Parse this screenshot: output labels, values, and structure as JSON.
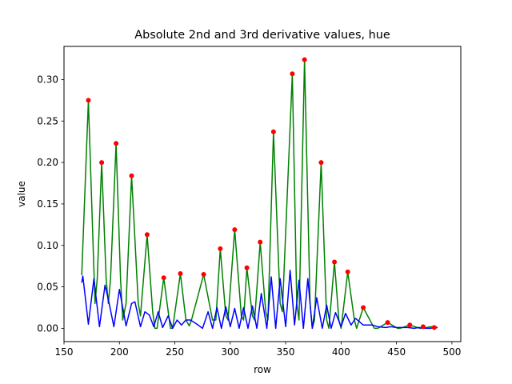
{
  "chart_data": {
    "type": "line",
    "title": "Absolute 2nd and 3rd derivative values, hue",
    "xlabel": "row",
    "ylabel": "value",
    "xlim": [
      150,
      508
    ],
    "ylim": [
      -0.016,
      0.34
    ],
    "xticks": [
      150,
      200,
      250,
      300,
      350,
      400,
      450,
      500
    ],
    "yticks": [
      0.0,
      0.05,
      0.1,
      0.15,
      0.2,
      0.25,
      0.3
    ],
    "ytick_labels": [
      "0.00",
      "0.05",
      "0.10",
      "0.15",
      "0.20",
      "0.25",
      "0.30"
    ],
    "grid": false,
    "series": [
      {
        "color": "#008000",
        "style": "line",
        "x": [
          166,
          172,
          176,
          178,
          180,
          184,
          188,
          190,
          192,
          197,
          201,
          203,
          206,
          211,
          217,
          219,
          225,
          230,
          232,
          234,
          240,
          246,
          248,
          255,
          260,
          263,
          265,
          276,
          284,
          287,
          291,
          296,
          298,
          304,
          310,
          312,
          315,
          320,
          322,
          327,
          332,
          334,
          339,
          345,
          347,
          356,
          360,
          362,
          367,
          372,
          374,
          376,
          382,
          387,
          389,
          394,
          398,
          400,
          406,
          412,
          414,
          420,
          430,
          433,
          442,
          451,
          453,
          462,
          471,
          473,
          481,
          487
        ],
        "y": [
          0.064,
          0.275,
          0.11,
          0.03,
          0.06,
          0.2,
          0.06,
          0.03,
          0.06,
          0.223,
          0.06,
          0.01,
          0.03,
          0.184,
          0.03,
          0.015,
          0.113,
          0.02,
          0.0,
          0.0,
          0.061,
          0.0,
          0.0,
          0.066,
          0.01,
          0.003,
          0.01,
          0.065,
          0.01,
          0.01,
          0.096,
          0.015,
          0.01,
          0.119,
          0.015,
          0.01,
          0.073,
          0.015,
          0.01,
          0.104,
          0.02,
          0.01,
          0.237,
          0.03,
          0.02,
          0.307,
          0.03,
          0.01,
          0.324,
          0.03,
          0.0,
          0.01,
          0.2,
          0.01,
          0.0,
          0.08,
          0.01,
          0.0,
          0.068,
          0.01,
          0.0,
          0.025,
          0.0,
          0.0,
          0.007,
          0.0,
          0.0,
          0.004,
          0.0,
          0.0,
          0.002,
          0.001
        ]
      },
      {
        "color": "#0000ff",
        "style": "line",
        "x": [
          166,
          167,
          172,
          177,
          182,
          187,
          190,
          195,
          200,
          206,
          211,
          214,
          219,
          223,
          227,
          231,
          235,
          239,
          244,
          248,
          252,
          256,
          260,
          264,
          270,
          275,
          280,
          284,
          288,
          292,
          296,
          300,
          304,
          308,
          312,
          316,
          320,
          324,
          328,
          333,
          337,
          341,
          345,
          350,
          354,
          358,
          362,
          366,
          370,
          374,
          378,
          383,
          387,
          391,
          395,
          400,
          404,
          409,
          413,
          420,
          428,
          433,
          440,
          445,
          450,
          456,
          460,
          466,
          470,
          476,
          480,
          487
        ],
        "y": [
          0.055,
          0.063,
          0.005,
          0.06,
          0.002,
          0.052,
          0.035,
          0.002,
          0.047,
          0.003,
          0.03,
          0.032,
          0.002,
          0.02,
          0.016,
          0.002,
          0.02,
          0.001,
          0.015,
          0.0,
          0.01,
          0.004,
          0.01,
          0.01,
          0.005,
          0.0,
          0.02,
          0.0,
          0.025,
          0.0,
          0.026,
          0.002,
          0.024,
          0.0,
          0.025,
          0.0,
          0.027,
          0.0,
          0.042,
          0.0,
          0.062,
          0.0,
          0.06,
          0.002,
          0.07,
          0.004,
          0.058,
          0.0,
          0.06,
          0.0,
          0.037,
          0.0,
          0.028,
          0.0,
          0.019,
          0.002,
          0.018,
          0.004,
          0.012,
          0.004,
          0.004,
          0.002,
          0.001,
          0.002,
          0.001,
          0.001,
          0.001,
          0.0,
          0.001,
          0.0,
          0.0,
          0.001
        ]
      },
      {
        "color": "#ff0000",
        "style": "points",
        "x": [
          172,
          184,
          197,
          211,
          225,
          240,
          255,
          276,
          291,
          304,
          315,
          327,
          339,
          356,
          367,
          382,
          394,
          406,
          420,
          442,
          462,
          474,
          484
        ],
        "y": [
          0.275,
          0.2,
          0.223,
          0.184,
          0.113,
          0.061,
          0.066,
          0.065,
          0.096,
          0.119,
          0.073,
          0.104,
          0.237,
          0.307,
          0.324,
          0.2,
          0.08,
          0.068,
          0.025,
          0.007,
          0.004,
          0.002,
          0.001
        ]
      }
    ]
  }
}
